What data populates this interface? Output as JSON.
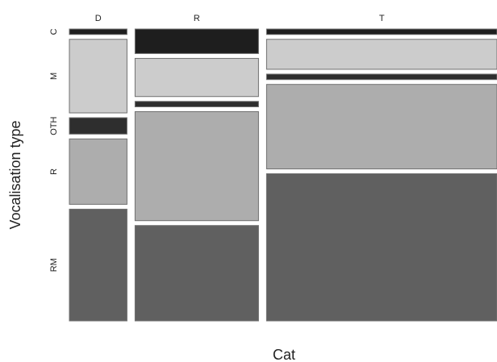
{
  "chart_data": {
    "type": "mosaic",
    "xlabel": "Cat",
    "ylabel": "Vocalisation type",
    "categories": [
      "D",
      "R",
      "T"
    ],
    "segments": [
      "C",
      "M",
      "OTH",
      "R",
      "RM"
    ],
    "values": {
      "D": {
        "C": 0.02,
        "M": 0.27,
        "OTH": 0.06,
        "R": 0.24,
        "RM": 0.41
      },
      "R": {
        "C": 0.09,
        "M": 0.14,
        "OTH": 0.02,
        "R": 0.4,
        "RM": 0.35
      },
      "T": {
        "C": 0.02,
        "M": 0.11,
        "OTH": 0.02,
        "R": 0.31,
        "RM": 0.54
      }
    },
    "column_widths": {
      "D": 0.14,
      "R": 0.3,
      "T": 0.56
    },
    "colors": {
      "C": "#1e1e1e",
      "M": "#cccccc",
      "OTH": "#2e2e2e",
      "R": "#adadad",
      "RM": "#606060"
    },
    "border_color": "#707070"
  }
}
